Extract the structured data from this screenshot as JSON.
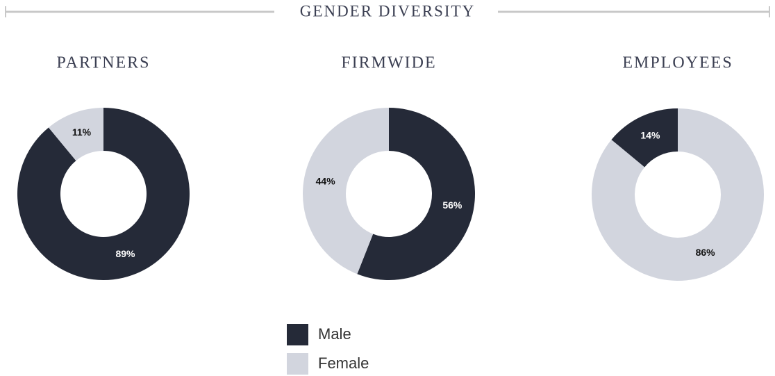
{
  "title": "GENDER DIVERSITY",
  "chart_data": [
    {
      "type": "pie",
      "title": "PARTNERS",
      "categories": [
        "Male",
        "Female"
      ],
      "values": [
        89,
        11
      ],
      "value_labels": [
        "89%",
        "11%"
      ],
      "colors": [
        "#252a38",
        "#d2d5de"
      ]
    },
    {
      "type": "pie",
      "title": "FIRMWIDE",
      "categories": [
        "Male",
        "Female"
      ],
      "values": [
        56,
        44
      ],
      "value_labels": [
        "56%",
        "44%"
      ],
      "colors": [
        "#252a38",
        "#d2d5de"
      ]
    },
    {
      "type": "pie",
      "title": "EMPLOYEES",
      "categories": [
        "Female",
        "Male"
      ],
      "values": [
        86,
        14
      ],
      "value_labels": [
        "86%",
        "14%"
      ],
      "colors": [
        "#d2d5de",
        "#252a38"
      ]
    }
  ]
}
